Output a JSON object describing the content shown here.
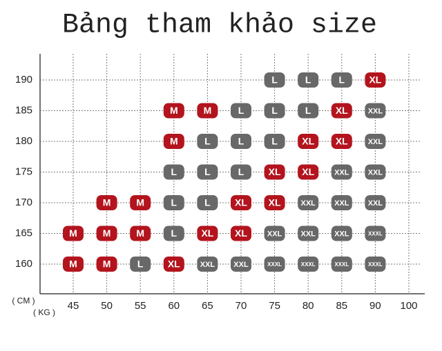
{
  "title": "Bảng tham khảo size",
  "height_unit": "( CM )",
  "weight_unit": "( KG )",
  "weights": [
    45,
    50,
    55,
    60,
    65,
    70,
    75,
    80,
    85,
    90,
    100
  ],
  "heights": [
    190,
    185,
    180,
    175,
    170,
    165,
    160
  ],
  "size_colors": {
    "M": "#b3141d",
    "XL": "#b3141d",
    "L": "#686868",
    "XXL": "#686868",
    "XXXL": "#686868"
  },
  "rows": [
    [
      null,
      null,
      null,
      null,
      null,
      null,
      "L",
      "L",
      "L",
      "XL"
    ],
    [
      null,
      null,
      null,
      "M",
      "M",
      "L",
      "L",
      "L",
      "XL",
      "XXL"
    ],
    [
      null,
      null,
      null,
      "M",
      "L",
      "L",
      "L",
      "XL",
      "XL",
      "XXL"
    ],
    [
      null,
      null,
      null,
      "L",
      "L",
      "L",
      "XL",
      "XL",
      "XXL",
      "XXL"
    ],
    [
      null,
      "M",
      "M",
      "L",
      "L",
      "XL",
      "XL",
      "XXL",
      "XXL",
      "XXL"
    ],
    [
      "M",
      "M",
      "M",
      "L",
      "XL",
      "XL",
      "XXL",
      "XXL",
      "XXL",
      "XXXL"
    ],
    [
      "M",
      "M",
      "L",
      "XL",
      "XXL",
      "XXL",
      "XXXL",
      "XXXL",
      "XXXL",
      "XXXL"
    ]
  ]
}
